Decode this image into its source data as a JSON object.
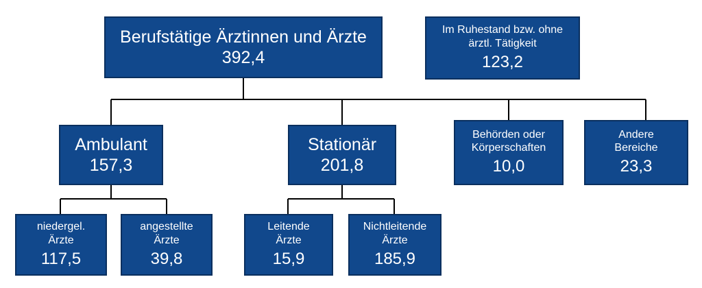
{
  "nodes": [
    {
      "label": [
        "Berufstätige Ärztinnen und Ärzte"
      ],
      "value": "392,4"
    },
    {
      "label": [
        "Im Ruhestand bzw. ohne",
        "ärztl. Tätigkeit"
      ],
      "value": "123,2"
    },
    {
      "label": [
        "Ambulant"
      ],
      "value": "157,3"
    },
    {
      "label": [
        "Stationär"
      ],
      "value": "201,8"
    },
    {
      "label": [
        "Behörden oder",
        "Körperschaften"
      ],
      "value": "10,0"
    },
    {
      "label": [
        "Andere",
        "Bereiche"
      ],
      "value": "23,3"
    },
    {
      "label": [
        "niedergel.",
        "Ärzte"
      ],
      "value": "117,5"
    },
    {
      "label": [
        "angestellte",
        "Ärzte"
      ],
      "value": "39,8"
    },
    {
      "label": [
        "Leitende",
        "Ärzte"
      ],
      "value": "15,9"
    },
    {
      "label": [
        "Nichtleitende",
        "Ärzte"
      ],
      "value": "185,9"
    }
  ]
}
